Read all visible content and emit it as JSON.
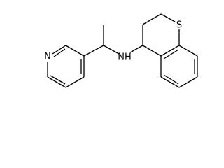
{
  "atoms": [
    {
      "label": "N"
    },
    {
      "label": "NH"
    },
    {
      "label": "S"
    }
  ]
}
